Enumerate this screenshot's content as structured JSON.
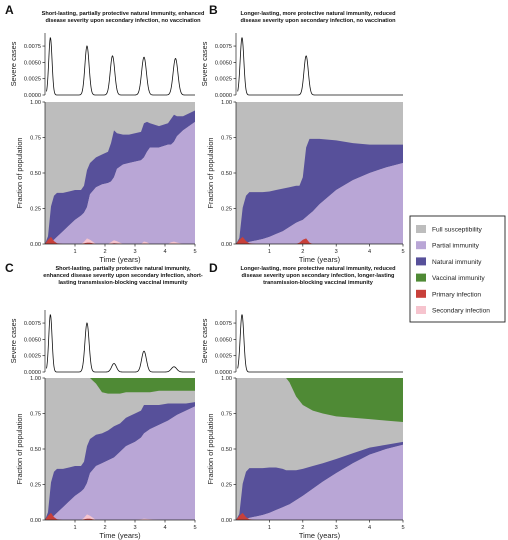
{
  "chart_data": [
    {
      "panel": "A",
      "type": "area",
      "title": [
        "Short-lasting, partially protective natural immunity, enhanced",
        "disease severity upon secondary infection, no vaccination"
      ],
      "top": {
        "type": "line",
        "ylabel": "Severe cases",
        "ylim": [
          0,
          0.0095
        ],
        "yticks": [
          "0.0000",
          "0.0025",
          "0.0050",
          "0.0075"
        ],
        "peaks": [
          {
            "t": 0.18,
            "h": 0.0088,
            "w": 0.055
          },
          {
            "t": 1.4,
            "h": 0.0075,
            "w": 0.07
          },
          {
            "t": 2.25,
            "h": 0.006,
            "w": 0.075
          },
          {
            "t": 3.3,
            "h": 0.0058,
            "w": 0.08
          },
          {
            "t": 4.35,
            "h": 0.0056,
            "w": 0.08
          }
        ]
      },
      "bottom": {
        "xlabel": "Time (years)",
        "ylabel": "Fraction of population",
        "xlim": [
          0,
          5
        ],
        "ylim": [
          0,
          1
        ],
        "xticks": [
          "1",
          "2",
          "3",
          "4",
          "5"
        ],
        "yticks": [
          "0.00",
          "0.25",
          "0.50",
          "0.75",
          "1.00"
        ],
        "x": [
          0,
          0.1,
          0.2,
          0.3,
          0.4,
          0.6,
          0.8,
          1.0,
          1.2,
          1.3,
          1.4,
          1.5,
          1.7,
          1.9,
          2.1,
          2.2,
          2.3,
          2.4,
          2.6,
          2.8,
          3.0,
          3.2,
          3.3,
          3.4,
          3.5,
          3.8,
          4.1,
          4.2,
          4.3,
          4.4,
          4.6,
          4.8,
          5.0
        ],
        "series": [
          {
            "name": "Partial immunity",
            "values": [
              0,
              0.005,
              0.015,
              0.03,
              0.05,
              0.09,
              0.13,
              0.17,
              0.2,
              0.22,
              0.26,
              0.35,
              0.4,
              0.42,
              0.43,
              0.44,
              0.47,
              0.53,
              0.56,
              0.57,
              0.58,
              0.59,
              0.61,
              0.65,
              0.68,
              0.68,
              0.7,
              0.7,
              0.72,
              0.76,
              0.8,
              0.83,
              0.86
            ]
          },
          {
            "name": "Natural immunity",
            "values": [
              0,
              0.05,
              0.25,
              0.31,
              0.31,
              0.27,
              0.24,
              0.21,
              0.18,
              0.19,
              0.26,
              0.22,
              0.21,
              0.21,
              0.22,
              0.27,
              0.33,
              0.25,
              0.21,
              0.2,
              0.2,
              0.2,
              0.24,
              0.21,
              0.17,
              0.15,
              0.15,
              0.18,
              0.19,
              0.14,
              0.1,
              0.09,
              0.08
            ]
          },
          {
            "name": "Primary infection",
            "values": [
              0,
              0.03,
              0.05,
              0.02,
              0.005,
              0,
              0,
              0,
              0,
              0.005,
              0.01,
              0.01,
              0,
              0,
              0,
              0.003,
              0.006,
              0.004,
              0,
              0,
              0,
              0,
              0.003,
              0.002,
              0,
              0,
              0,
              0.002,
              0.002,
              0.001,
              0,
              0,
              0
            ]
          },
          {
            "name": "Secondary infection",
            "values": [
              0,
              0,
              0,
              0,
              0,
              0,
              0,
              0,
              0,
              0.01,
              0.03,
              0.02,
              0,
              0,
              0,
              0.01,
              0.02,
              0.015,
              0,
              0,
              0,
              0,
              0.015,
              0.01,
              0,
              0,
              0,
              0.01,
              0.015,
              0.01,
              0,
              0,
              0
            ]
          }
        ]
      }
    },
    {
      "panel": "B",
      "type": "area",
      "title": [
        "Longer-lasting, more protective natural immunity, reduced",
        "disease severity upon secondary infection, no vaccination"
      ],
      "top": {
        "type": "line",
        "ylabel": "Severe cases",
        "ylim": [
          0,
          0.0095
        ],
        "yticks": [
          "0.0000",
          "0.0025",
          "0.0050",
          "0.0075"
        ],
        "peaks": [
          {
            "t": 0.18,
            "h": 0.0088,
            "w": 0.055
          },
          {
            "t": 2.1,
            "h": 0.006,
            "w": 0.065
          }
        ]
      },
      "bottom": {
        "xlabel": "Time (years)",
        "ylabel": "Fraction of population",
        "xlim": [
          0,
          5
        ],
        "ylim": [
          0,
          1
        ],
        "xticks": [
          "1",
          "2",
          "3",
          "4",
          "5"
        ],
        "yticks": [
          "0.00",
          "0.25",
          "0.50",
          "0.75",
          "1.00"
        ],
        "x": [
          0,
          0.1,
          0.2,
          0.3,
          0.4,
          0.6,
          0.8,
          1.0,
          1.2,
          1.4,
          1.6,
          1.8,
          1.9,
          2.0,
          2.1,
          2.2,
          2.3,
          2.5,
          3.0,
          3.5,
          4.0,
          4.5,
          5.0
        ],
        "series": [
          {
            "name": "Partial immunity",
            "values": [
              0,
              0.002,
              0.005,
              0.01,
              0.015,
              0.025,
              0.035,
              0.05,
              0.07,
              0.09,
              0.12,
              0.15,
              0.16,
              0.17,
              0.19,
              0.21,
              0.23,
              0.28,
              0.38,
              0.45,
              0.5,
              0.54,
              0.57
            ]
          },
          {
            "name": "Natural immunity",
            "values": [
              0,
              0.04,
              0.25,
              0.33,
              0.35,
              0.34,
              0.33,
              0.32,
              0.31,
              0.3,
              0.28,
              0.26,
              0.25,
              0.3,
              0.49,
              0.53,
              0.51,
              0.46,
              0.35,
              0.26,
              0.2,
              0.16,
              0.13
            ]
          },
          {
            "name": "Primary infection",
            "values": [
              0,
              0.03,
              0.05,
              0.02,
              0.005,
              0,
              0,
              0,
              0,
              0,
              0,
              0,
              0.01,
              0.03,
              0.04,
              0.01,
              0,
              0,
              0,
              0,
              0,
              0,
              0
            ]
          },
          {
            "name": "Secondary infection",
            "values": [
              0,
              0,
              0,
              0,
              0,
              0,
              0,
              0,
              0,
              0,
              0,
              0,
              0,
              0,
              0,
              0,
              0,
              0,
              0,
              0,
              0,
              0,
              0
            ]
          }
        ]
      }
    },
    {
      "panel": "C",
      "type": "area",
      "title": [
        "Short-lasting, partially protective natural immunity,",
        "enhanced disease severity upon secondary infection, short-",
        "lasting transmission-blocking vaccinal immunity"
      ],
      "top": {
        "type": "line",
        "ylabel": "Severe cases",
        "ylim": [
          0,
          0.0095
        ],
        "yticks": [
          "0.0000",
          "0.0025",
          "0.0050",
          "0.0075"
        ],
        "peaks": [
          {
            "t": 0.18,
            "h": 0.0088,
            "w": 0.055
          },
          {
            "t": 1.4,
            "h": 0.0075,
            "w": 0.07
          },
          {
            "t": 2.3,
            "h": 0.0013,
            "w": 0.08
          },
          {
            "t": 3.3,
            "h": 0.0032,
            "w": 0.08
          },
          {
            "t": 4.3,
            "h": 0.0008,
            "w": 0.09
          }
        ]
      },
      "bottom": {
        "xlabel": "Time (years)",
        "ylabel": "Fraction of population",
        "xlim": [
          0,
          5
        ],
        "ylim": [
          0,
          1
        ],
        "xticks": [
          "1",
          "2",
          "3",
          "4",
          "5"
        ],
        "yticks": [
          "0.00",
          "0.25",
          "0.50",
          "0.75",
          "1.00"
        ],
        "x": [
          0,
          0.1,
          0.2,
          0.3,
          0.4,
          0.6,
          0.8,
          1.0,
          1.2,
          1.3,
          1.4,
          1.5,
          1.7,
          1.9,
          2.1,
          2.3,
          2.5,
          2.7,
          3.0,
          3.2,
          3.3,
          3.5,
          3.8,
          4.1,
          4.4,
          4.7,
          5.0
        ],
        "series": [
          {
            "name": "Partial immunity",
            "values": [
              0,
              0.005,
              0.015,
              0.03,
              0.05,
              0.09,
              0.13,
              0.17,
              0.2,
              0.22,
              0.26,
              0.33,
              0.38,
              0.4,
              0.42,
              0.44,
              0.48,
              0.52,
              0.55,
              0.58,
              0.61,
              0.64,
              0.67,
              0.7,
              0.74,
              0.77,
              0.8
            ]
          },
          {
            "name": "Natural immunity",
            "values": [
              0,
              0.05,
              0.25,
              0.31,
              0.31,
              0.27,
              0.24,
              0.21,
              0.18,
              0.19,
              0.26,
              0.24,
              0.22,
              0.21,
              0.21,
              0.22,
              0.2,
              0.2,
              0.2,
              0.19,
              0.2,
              0.17,
              0.14,
              0.12,
              0.08,
              0.05,
              0.03
            ]
          },
          {
            "name": "Vaccinal immunity",
            "values": [
              0,
              0,
              0,
              0,
              0,
              0,
              0,
              0,
              0,
              0,
              0,
              0,
              0.04,
              0.1,
              0.11,
              0.11,
              0.11,
              0.1,
              0.1,
              0.1,
              0.1,
              0.1,
              0.09,
              0.09,
              0.09,
              0.09,
              0.09
            ]
          },
          {
            "name": "Primary infection",
            "values": [
              0,
              0.03,
              0.05,
              0.02,
              0.005,
              0,
              0,
              0,
              0,
              0.005,
              0.01,
              0.01,
              0,
              0,
              0,
              0,
              0,
              0,
              0,
              0,
              0,
              0,
              0,
              0,
              0,
              0,
              0
            ]
          },
          {
            "name": "Secondary infection",
            "values": [
              0,
              0,
              0,
              0,
              0,
              0,
              0,
              0,
              0,
              0.01,
              0.03,
              0.02,
              0,
              0,
              0,
              0,
              0,
              0,
              0,
              0.005,
              0.01,
              0.005,
              0,
              0,
              0,
              0,
              0
            ]
          }
        ]
      }
    },
    {
      "panel": "D",
      "type": "area",
      "title": [
        "Longer-lasting, more protective natural immunity, reduced",
        "disease severity upon secondary infection, longer-lasting",
        "transmission-blocking vaccinal immunity"
      ],
      "top": {
        "type": "line",
        "ylabel": "Severe cases",
        "ylim": [
          0,
          0.0095
        ],
        "yticks": [
          "0.0000",
          "0.0025",
          "0.0050",
          "0.0075"
        ],
        "peaks": [
          {
            "t": 0.18,
            "h": 0.0088,
            "w": 0.055
          }
        ]
      },
      "bottom": {
        "xlabel": "Time (years)",
        "ylabel": "Fraction of population",
        "xlim": [
          0,
          5
        ],
        "ylim": [
          0,
          1
        ],
        "xticks": [
          "1",
          "2",
          "3",
          "4",
          "5"
        ],
        "yticks": [
          "0.00",
          "0.25",
          "0.50",
          "0.75",
          "1.00"
        ],
        "x": [
          0,
          0.1,
          0.2,
          0.3,
          0.4,
          0.6,
          0.8,
          1.0,
          1.2,
          1.4,
          1.5,
          1.6,
          1.8,
          2.0,
          2.3,
          2.6,
          3.0,
          3.5,
          4.0,
          4.5,
          5.0
        ],
        "series": [
          {
            "name": "Partial immunity",
            "values": [
              0,
              0.002,
              0.005,
              0.01,
              0.015,
              0.025,
              0.035,
              0.05,
              0.07,
              0.09,
              0.1,
              0.11,
              0.14,
              0.17,
              0.22,
              0.27,
              0.33,
              0.4,
              0.46,
              0.5,
              0.53
            ]
          },
          {
            "name": "Natural immunity",
            "values": [
              0,
              0.04,
              0.25,
              0.33,
              0.35,
              0.34,
              0.33,
              0.32,
              0.3,
              0.27,
              0.25,
              0.24,
              0.21,
              0.19,
              0.16,
              0.13,
              0.1,
              0.07,
              0.05,
              0.03,
              0.02
            ]
          },
          {
            "name": "Vaccinal immunity",
            "values": [
              0,
              0,
              0,
              0,
              0,
              0,
              0,
              0,
              0,
              0,
              0,
              0.03,
              0.13,
              0.19,
              0.23,
              0.25,
              0.27,
              0.28,
              0.29,
              0.3,
              0.31
            ]
          },
          {
            "name": "Primary infection",
            "values": [
              0,
              0.03,
              0.05,
              0.02,
              0.005,
              0,
              0,
              0,
              0,
              0,
              0,
              0,
              0,
              0,
              0,
              0,
              0,
              0,
              0,
              0,
              0
            ]
          },
          {
            "name": "Secondary infection",
            "values": [
              0,
              0,
              0,
              0,
              0,
              0,
              0,
              0,
              0,
              0,
              0,
              0,
              0,
              0,
              0,
              0,
              0,
              0,
              0,
              0,
              0
            ]
          }
        ]
      }
    }
  ],
  "legend": [
    {
      "label": "Full susceptibility",
      "color": "#bdbdbd"
    },
    {
      "label": "Partial immunity",
      "color": "#b9a6d6"
    },
    {
      "label": "Natural immunity",
      "color": "#57509a"
    },
    {
      "label": "Vaccinal immunity",
      "color": "#4f8a35"
    },
    {
      "label": "Primary infection",
      "color": "#c8403a"
    },
    {
      "label": "Secondary infection",
      "color": "#f6c4ce"
    }
  ]
}
